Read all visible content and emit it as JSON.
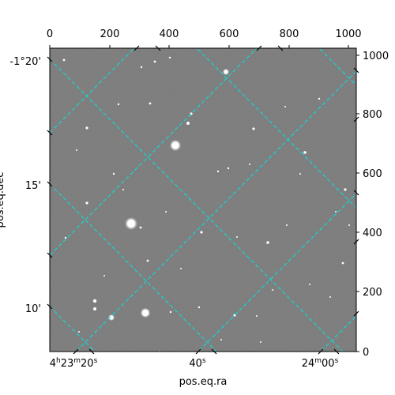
{
  "figure": {
    "xlabel": "pos.eq.ra",
    "ylabel": "pos.eq.dec",
    "pixel_x_ticks": [
      "0",
      "200",
      "400",
      "600",
      "800",
      "1000"
    ],
    "pixel_y_ticks": [
      "0",
      "200",
      "400",
      "600",
      "800",
      "1000"
    ],
    "ra_tick_labels": [
      {
        "h": "4",
        "hs": "h",
        "m": "23",
        "ms": "m",
        "s": "20",
        "ss": "s"
      },
      {
        "s": "40",
        "ss": "s"
      },
      {
        "m": "24",
        "ms": "m",
        "s": "00",
        "ss": "s"
      }
    ],
    "dec_tick_labels": [
      "-1°20'",
      "15'",
      "10'"
    ],
    "colors": {
      "image_background": "#7b7b7b",
      "grid": "#00e5e5",
      "axes": "#000000",
      "star": "#ffffff"
    }
  }
}
